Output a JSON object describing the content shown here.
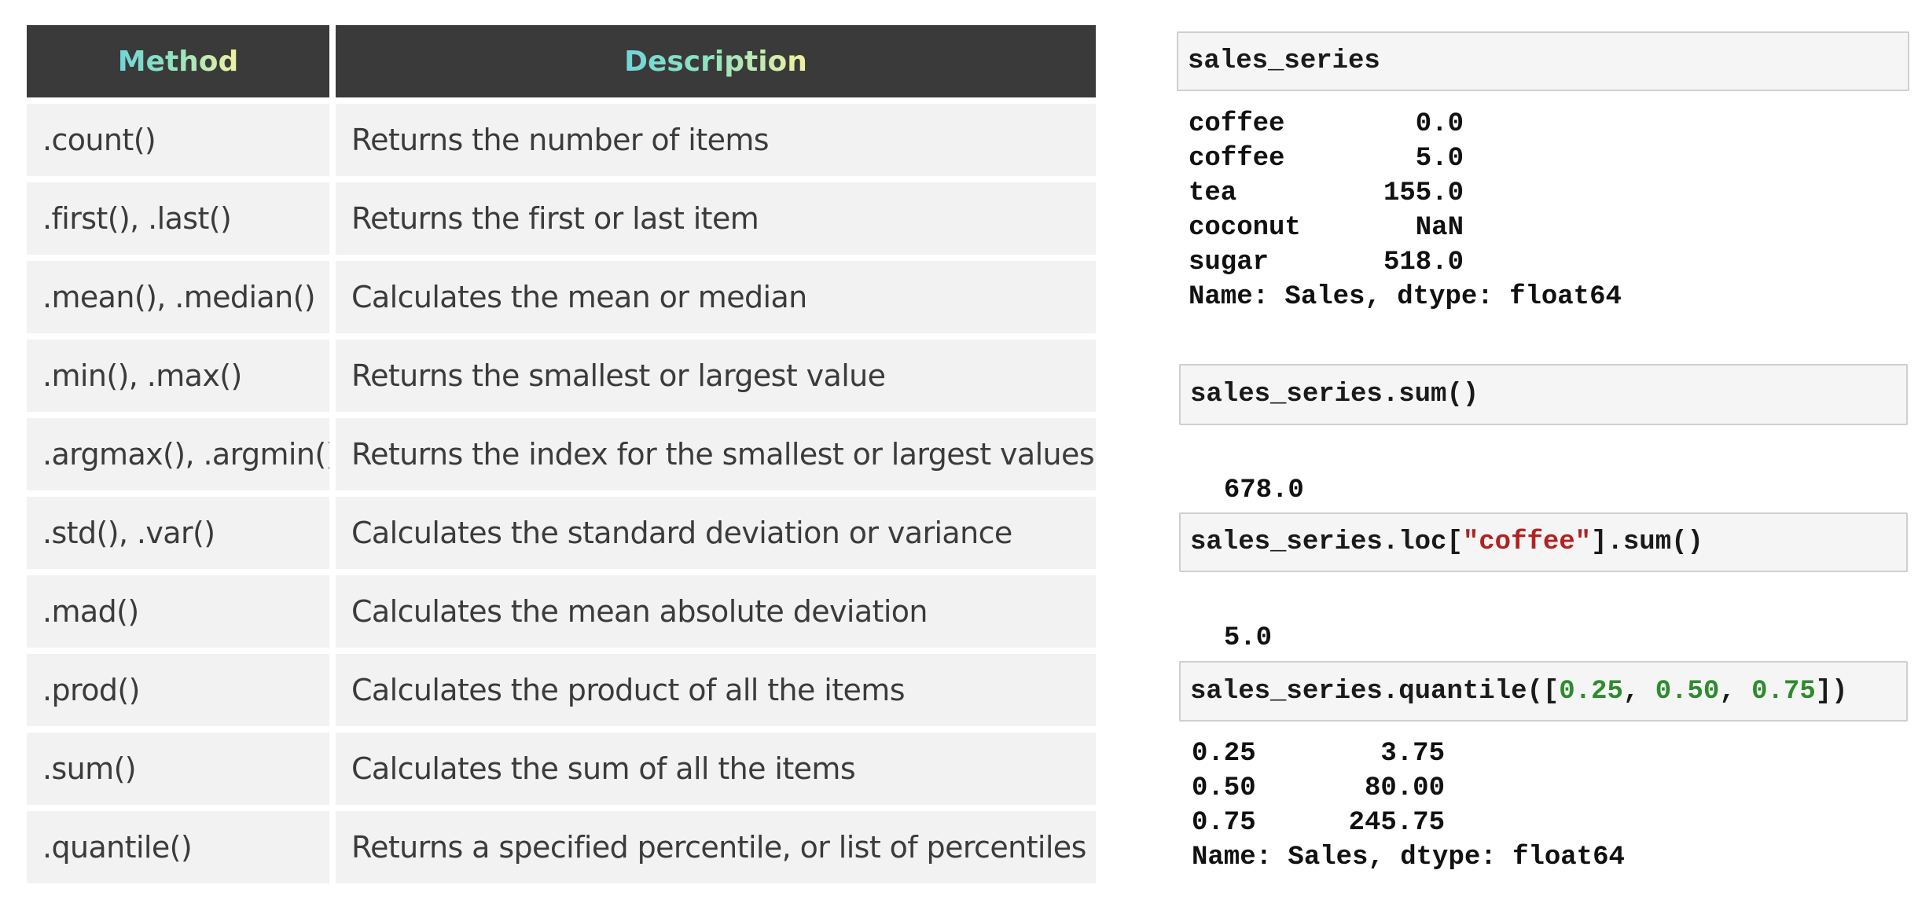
{
  "table": {
    "headers": {
      "method": "Method",
      "description": "Description"
    },
    "rows": [
      {
        "method": ".count()",
        "description": "Returns the number of items"
      },
      {
        "method": ".first(), .last()",
        "description": "Returns the first or last item"
      },
      {
        "method": ".mean(), .median()",
        "description": "Calculates the mean or median"
      },
      {
        "method": ".min(), .max()",
        "description": "Returns the smallest or largest value"
      },
      {
        "method": ".argmax(), .argmin()",
        "description": "Returns the index for the smallest or largest values"
      },
      {
        "method": ".std(), .var()",
        "description": "Calculates the standard deviation or variance"
      },
      {
        "method": ".mad()",
        "description": "Calculates the mean absolute deviation"
      },
      {
        "method": ".prod()",
        "description": "Calculates the product of all the items"
      },
      {
        "method": ".sum()",
        "description": "Calculates the sum of all the items"
      },
      {
        "method": ".quantile()",
        "description": "Returns a specified percentile, or list of percentiles"
      }
    ]
  },
  "cells": {
    "cell1": {
      "input": "sales_series",
      "output": [
        {
          "key": "coffee",
          "value": "0.0"
        },
        {
          "key": "coffee",
          "value": "5.0"
        },
        {
          "key": "tea",
          "value": "155.0"
        },
        {
          "key": "coconut",
          "value": "NaN"
        },
        {
          "key": "sugar",
          "value": "518.0"
        }
      ],
      "footer": "Name: Sales, dtype: float64"
    },
    "cell2": {
      "input": "sales_series.sum()",
      "output": "678.0"
    },
    "cell3": {
      "input_prefix": "sales_series.loc[",
      "input_string": "\"coffee\"",
      "input_suffix": "].sum()",
      "output": "5.0"
    },
    "cell4": {
      "input_prefix": "sales_series.quantile([",
      "num1": "0.25",
      "sep1": ", ",
      "num2": "0.50",
      "sep2": ", ",
      "num3": "0.75",
      "input_suffix": "])",
      "output": [
        {
          "key": "0.25",
          "value": "3.75"
        },
        {
          "key": "0.50",
          "value": "80.00"
        },
        {
          "key": "0.75",
          "value": "245.75"
        }
      ],
      "footer": "Name: Sales, dtype: float64"
    }
  },
  "colors": {
    "header_bg": "#3a3a3a",
    "row_bg": "#f2f2f2",
    "string": "#b22222",
    "number": "#2e8b2e"
  }
}
